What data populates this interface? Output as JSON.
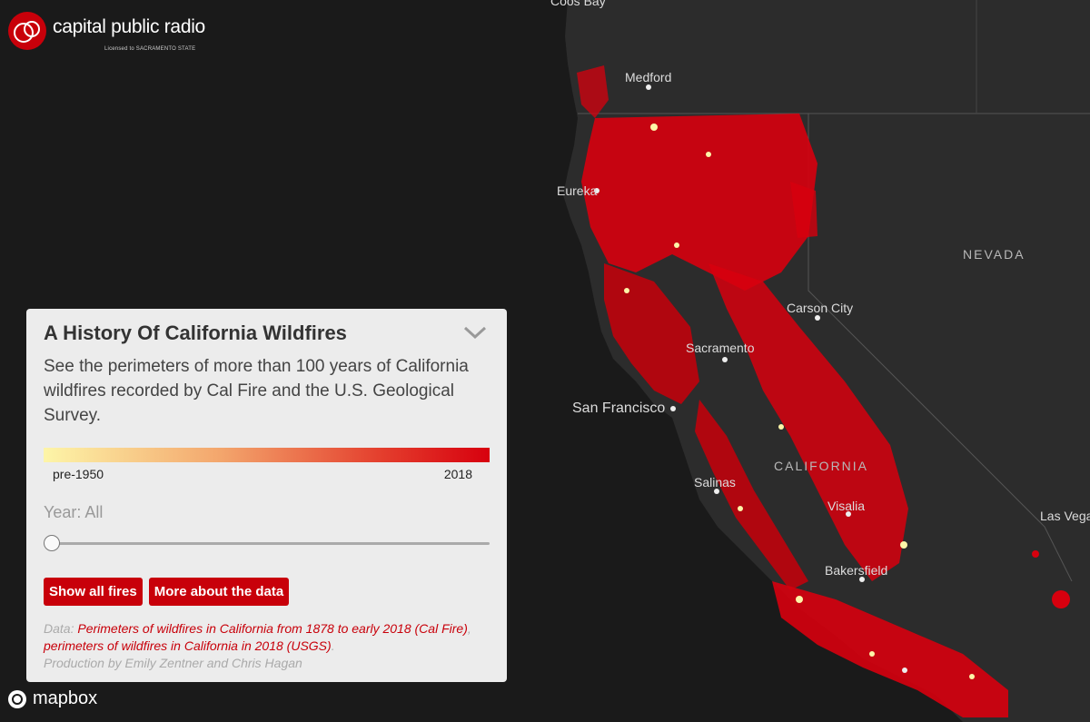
{
  "logo": {
    "name": "capital public radio",
    "sub": "Licensed to SACRAMENTO STATE"
  },
  "map": {
    "labels": {
      "coos_bay": "Coos Bay",
      "medford": "Medford",
      "eureka": "Eureka",
      "nevada": "NEVADA",
      "carson_city": "Carson City",
      "sacramento": "Sacramento",
      "san_francisco": "San Francisco",
      "california": "CALIFORNIA",
      "salinas": "Salinas",
      "visalia": "Visalia",
      "bakersfield": "Bakersfield",
      "las_vegas": "Las Vegas"
    },
    "colors": {
      "background": "#1a1a1a",
      "land": "#2c2c2c",
      "fire_recent": "#d7000e",
      "fire_old": "#fdf5a8"
    }
  },
  "panel": {
    "title": "A History Of California Wildfires",
    "description": "See the perimeters of more than 100 years of California wildfires recorded by Cal Fire and the U.S. Geological Survey.",
    "legend_min": "pre-1950",
    "legend_max": "2018",
    "year_label": "Year: All",
    "slider_value": 0,
    "buttons": {
      "show_all": "Show all fires",
      "more_about": "More about the data"
    },
    "credits": {
      "data_prefix": "Data: ",
      "link1": "Perimeters of wildfires in California from 1878 to early 2018 (Cal Fire)",
      "sep": ", ",
      "link2": "perimeters of wildfires in California in 2018 (USGS)",
      "end": ".",
      "production": "Production by Emily Zentner and Chris Hagan"
    }
  },
  "attribution": {
    "mapbox": "mapbox"
  }
}
